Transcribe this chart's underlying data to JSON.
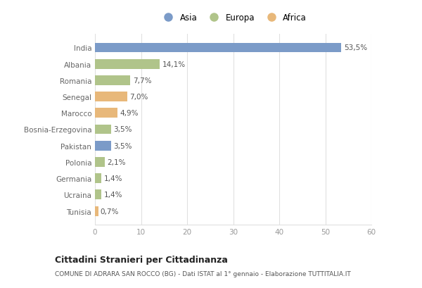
{
  "countries": [
    "India",
    "Albania",
    "Romania",
    "Senegal",
    "Marocco",
    "Bosnia-Erzegovina",
    "Pakistan",
    "Polonia",
    "Germania",
    "Ucraina",
    "Tunisia"
  ],
  "values": [
    53.5,
    14.1,
    7.7,
    7.0,
    4.9,
    3.5,
    3.5,
    2.1,
    1.4,
    1.4,
    0.7
  ],
  "labels": [
    "53,5%",
    "14,1%",
    "7,7%",
    "7,0%",
    "4,9%",
    "3,5%",
    "3,5%",
    "2,1%",
    "1,4%",
    "1,4%",
    "0,7%"
  ],
  "categories": [
    "Asia",
    "Europa",
    "Africa"
  ],
  "continent": [
    "Asia",
    "Europa",
    "Europa",
    "Africa",
    "Africa",
    "Europa",
    "Asia",
    "Europa",
    "Europa",
    "Europa",
    "Africa"
  ],
  "colors": {
    "Asia": "#7b9bc8",
    "Europa": "#b0c48a",
    "Africa": "#e8b87a"
  },
  "bg_color": "#ffffff",
  "grid_color": "#e0e0e0",
  "xlim": [
    0,
    60
  ],
  "xticks": [
    0,
    10,
    20,
    30,
    40,
    50,
    60
  ],
  "title_main": "Cittadini Stranieri per Cittadinanza",
  "title_sub": "COMUNE DI ADRARA SAN ROCCO (BG) - Dati ISTAT al 1° gennaio - Elaborazione TUTTITALIA.IT",
  "label_fontsize": 7.5,
  "tick_fontsize": 7.5,
  "value_fontsize": 7.5,
  "bar_height": 0.6
}
